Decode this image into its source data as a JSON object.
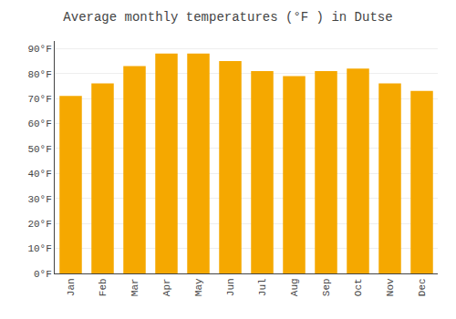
{
  "chart_data": {
    "type": "bar",
    "title": "Average monthly temperatures (°F ) in Dutse",
    "categories": [
      "Jan",
      "Feb",
      "Mar",
      "Apr",
      "May",
      "Jun",
      "Jul",
      "Aug",
      "Sep",
      "Oct",
      "Nov",
      "Dec"
    ],
    "values": [
      71,
      76,
      83,
      88,
      88,
      85,
      81,
      79,
      81,
      82,
      76,
      73
    ],
    "color": "#F5A800",
    "ylim": [
      0,
      93
    ],
    "yticks": [
      {
        "value": 0,
        "label": "0°F"
      },
      {
        "value": 10,
        "label": "10°F"
      },
      {
        "value": 20,
        "label": "20°F"
      },
      {
        "value": 30,
        "label": "30°F"
      },
      {
        "value": 40,
        "label": "40°F"
      },
      {
        "value": 50,
        "label": "50°F"
      },
      {
        "value": 60,
        "label": "60°F"
      },
      {
        "value": 70,
        "label": "70°F"
      },
      {
        "value": 80,
        "label": "80°F"
      },
      {
        "value": 90,
        "label": "90°F"
      }
    ],
    "grid": true
  }
}
